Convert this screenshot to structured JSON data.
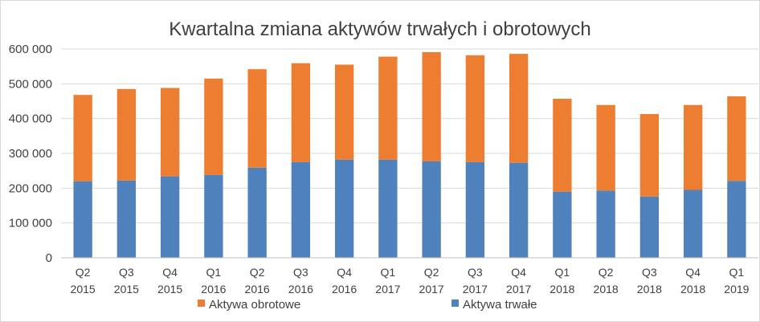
{
  "chart_data": {
    "type": "bar",
    "stacked": true,
    "title": "Kwartalna zmiana aktywów trwałych i obrotowych",
    "categories": [
      [
        "Q2",
        "2015"
      ],
      [
        "Q3",
        "2015"
      ],
      [
        "Q4",
        "2015"
      ],
      [
        "Q1",
        "2016"
      ],
      [
        "Q2",
        "2016"
      ],
      [
        "Q3",
        "2016"
      ],
      [
        "Q4",
        "2016"
      ],
      [
        "Q1",
        "2017"
      ],
      [
        "Q2",
        "2017"
      ],
      [
        "Q3",
        "2017"
      ],
      [
        "Q4",
        "2017"
      ],
      [
        "Q1",
        "2018"
      ],
      [
        "Q2",
        "2018"
      ],
      [
        "Q3",
        "2018"
      ],
      [
        "Q4",
        "2018"
      ],
      [
        "Q1",
        "2019"
      ]
    ],
    "series": [
      {
        "name": "Aktywa trwałe",
        "color": "#4f81bd",
        "values": [
          220000,
          222000,
          234000,
          238000,
          259000,
          275000,
          282000,
          282000,
          277000,
          275000,
          273000,
          190000,
          193000,
          176000,
          195000,
          221000
        ]
      },
      {
        "name": "Aktywa obrotowe",
        "color": "#ed7d31",
        "values": [
          248000,
          263000,
          254000,
          277000,
          283000,
          284000,
          273000,
          296000,
          314000,
          307000,
          313000,
          267000,
          246000,
          237000,
          244000,
          243000
        ]
      }
    ],
    "legend_order": [
      "Aktywa obrotowe",
      "Aktywa trwałe"
    ],
    "legend_position": "bottom",
    "ylim": [
      0,
      600000
    ],
    "yticks": [
      "0",
      "100 000",
      "200 000",
      "300 000",
      "400 000",
      "500 000",
      "600 000"
    ],
    "grid": true
  }
}
